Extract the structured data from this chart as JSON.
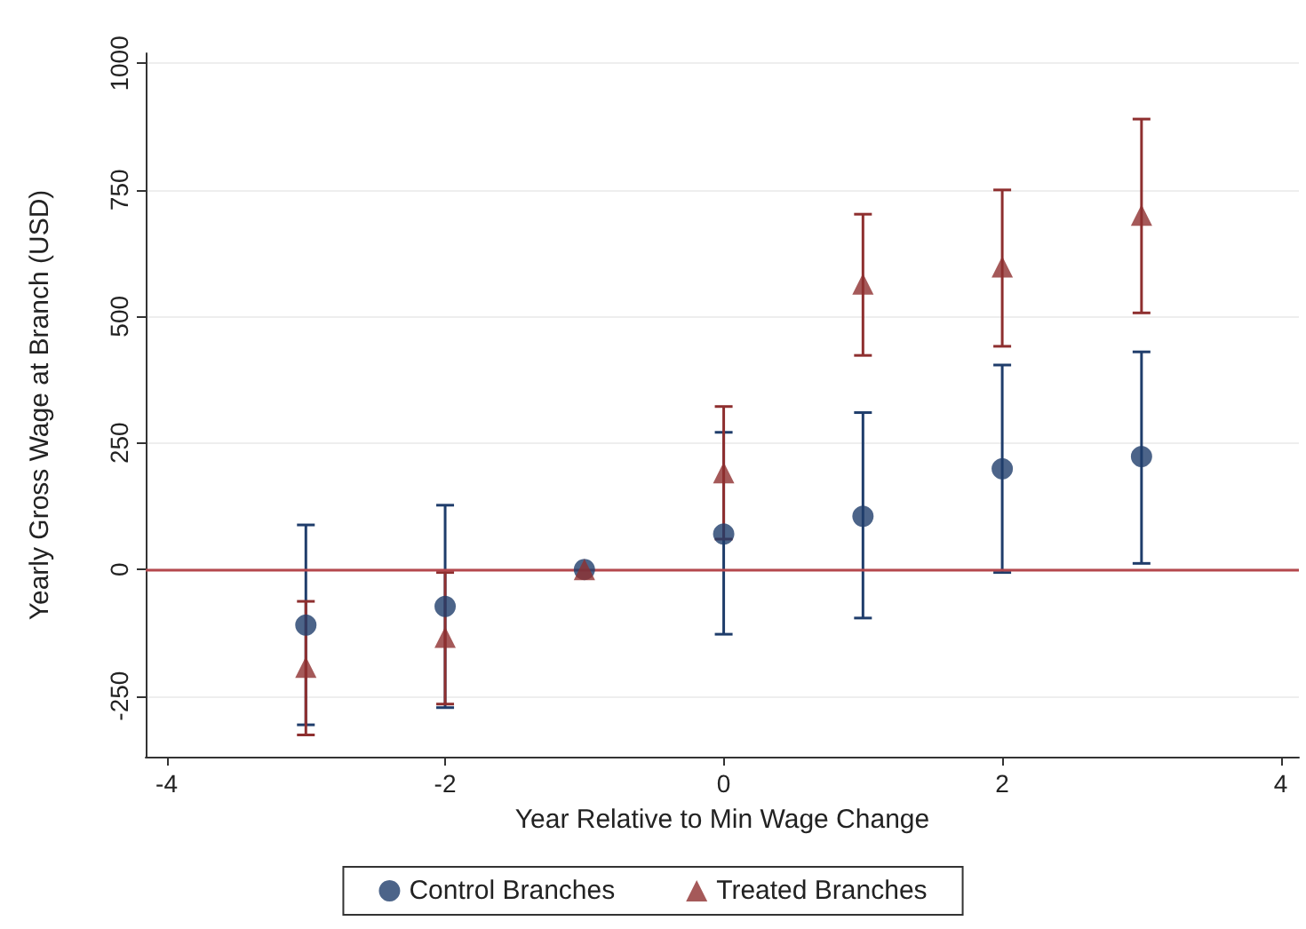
{
  "chart_data": {
    "type": "scatter",
    "xlabel": "Year Relative to Min Wage Change",
    "ylabel": "Yearly Gross Wage at Branch (USD)",
    "xlim": [
      -4.15,
      4.13
    ],
    "xticks": [
      -4,
      -2,
      0,
      2,
      4
    ],
    "ylim": [
      -370,
      1020
    ],
    "yticks": [
      -250,
      0,
      250,
      500,
      750,
      1000
    ],
    "grid": "y",
    "legend": "bottom",
    "ref_lines": [
      {
        "axis": "y",
        "value": 0,
        "color": "#b5484d"
      }
    ],
    "series": [
      {
        "name": "Control Branches",
        "color": "#1f3d6b",
        "marker": "circle",
        "x": [
          -3,
          -2,
          -1,
          0,
          1,
          2,
          3
        ],
        "values": [
          -110,
          -73,
          0,
          70,
          105,
          199,
          223
        ],
        "errors": [
          [
            -307,
            88
          ],
          [
            -273,
            127
          ],
          null,
          [
            -128,
            271
          ],
          [
            -96,
            310
          ],
          [
            -6,
            404
          ],
          [
            12,
            430
          ]
        ]
      },
      {
        "name": "Treated Branches",
        "color": "#8e2f2f",
        "marker": "triangle",
        "x": [
          -3,
          -2,
          -1,
          0,
          1,
          2,
          3
        ],
        "values": [
          -193,
          -134,
          0,
          191,
          564,
          598,
          700
        ],
        "errors": [
          [
            -327,
            -63
          ],
          [
            -266,
            -6
          ],
          null,
          [
            60,
            322
          ],
          [
            423,
            702
          ],
          [
            441,
            750
          ],
          [
            507,
            890
          ]
        ]
      }
    ]
  }
}
